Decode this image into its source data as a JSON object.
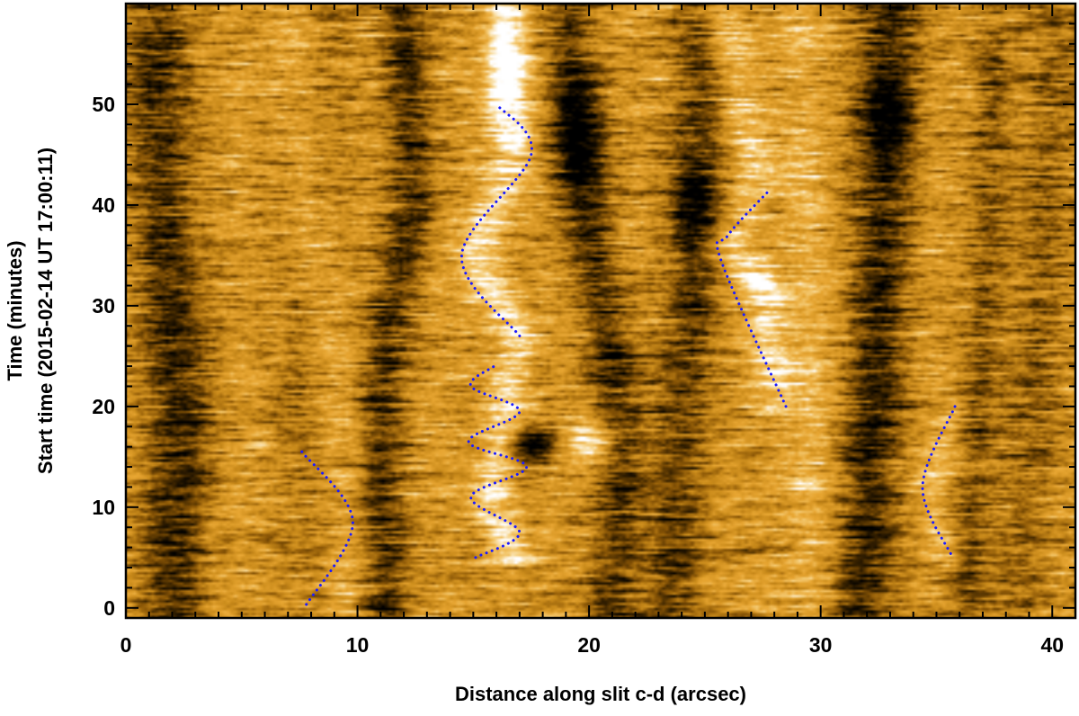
{
  "chart_data": {
    "type": "heatmap",
    "title": "",
    "xlabel": "Distance along slit c-d (arcsec)",
    "ylabel_line1": "Time (minutes)",
    "ylabel_line2": "Start time (2015-02-14 UT 17:00:11)",
    "xlim": [
      0,
      41
    ],
    "ylim": [
      -1,
      60
    ],
    "x_ticks": [
      0,
      10,
      20,
      30,
      40
    ],
    "y_ticks": [
      0,
      10,
      20,
      30,
      40,
      50
    ],
    "colormap": [
      "#000000",
      "#3a2300",
      "#8a5606",
      "#c98a1a",
      "#e8a632",
      "#f6cf7c",
      "#ffffff"
    ],
    "marker_color": "#1c1cff",
    "grid": false,
    "dark_bands": [
      {
        "x": [
          [
            0,
            2.0
          ],
          [
            10,
            2.2
          ],
          [
            20,
            2.4
          ],
          [
            30,
            2.0
          ],
          [
            40,
            1.6
          ],
          [
            50,
            1.4
          ],
          [
            60,
            1.3
          ]
        ],
        "width": 1.4,
        "strength": 0.75
      },
      {
        "x": [
          [
            0,
            11.3
          ],
          [
            10,
            11.1
          ],
          [
            20,
            11.0
          ],
          [
            30,
            11.5
          ],
          [
            40,
            12.4
          ],
          [
            50,
            12.2
          ],
          [
            60,
            12.0
          ]
        ],
        "width": 1.0,
        "strength": 0.7
      },
      {
        "x": [
          [
            0,
            8.0
          ],
          [
            20,
            7.5
          ],
          [
            40,
            8.2
          ],
          [
            60,
            8.4
          ]
        ],
        "width": 1.3,
        "strength": 0.2
      },
      {
        "x": [
          [
            0,
            21.0
          ],
          [
            10,
            21.3
          ],
          [
            20,
            21.3
          ],
          [
            30,
            20.6
          ],
          [
            40,
            19.8
          ],
          [
            50,
            19.3
          ],
          [
            60,
            19.1
          ]
        ],
        "width": 1.1,
        "strength": 0.7
      },
      {
        "x": [
          [
            0,
            23.5
          ],
          [
            15,
            23.9
          ],
          [
            30,
            24.4
          ],
          [
            45,
            24.7
          ],
          [
            60,
            24.9
          ]
        ],
        "width": 1.2,
        "strength": 0.65
      },
      {
        "x": [
          [
            0,
            31.8
          ],
          [
            20,
            32.3
          ],
          [
            40,
            32.7
          ],
          [
            60,
            32.9
          ]
        ],
        "width": 1.3,
        "strength": 0.8
      },
      {
        "x": [
          [
            0,
            36.3
          ],
          [
            20,
            36.8
          ],
          [
            40,
            37.3
          ],
          [
            60,
            37.6
          ]
        ],
        "width": 0.8,
        "strength": 0.45
      },
      {
        "x": [
          [
            0,
            38.5
          ],
          [
            30,
            39.5
          ],
          [
            60,
            40.4
          ]
        ],
        "width": 1.3,
        "strength": 0.35
      }
    ],
    "bright_bands": [
      {
        "x": [
          [
            0,
            9.2
          ],
          [
            10,
            9.6
          ],
          [
            20,
            9.0
          ],
          [
            30,
            8.5
          ],
          [
            40,
            8.0
          ],
          [
            50,
            7.6
          ],
          [
            60,
            7.4
          ]
        ],
        "width": 0.9,
        "strength": 0.3
      },
      {
        "x": [
          [
            5,
            16.8
          ],
          [
            10,
            15.8
          ],
          [
            20,
            16.3
          ],
          [
            27,
            17.0
          ],
          [
            35,
            15.0
          ],
          [
            45,
            16.8
          ],
          [
            60,
            16.5
          ]
        ],
        "width": 0.9,
        "strength": 0.7
      },
      {
        "x": [
          [
            20,
            28.0
          ],
          [
            30,
            27.9
          ],
          [
            36,
            26.0
          ],
          [
            42,
            27.4
          ],
          [
            60,
            25.5
          ]
        ],
        "width": 1.0,
        "strength": 0.55
      },
      {
        "x": [
          [
            0,
            29.5
          ],
          [
            30,
            29.6
          ],
          [
            60,
            29.0
          ]
        ],
        "width": 0.9,
        "strength": 0.3
      },
      {
        "x": [
          [
            5,
            35.5
          ],
          [
            12,
            34.6
          ],
          [
            20,
            35.8
          ]
        ],
        "width": 0.7,
        "strength": 0.35
      }
    ],
    "dark_blobs": [
      {
        "x": 17.6,
        "y": 16.0,
        "rx": 1.0,
        "ry": 1.8,
        "strength": 1.1
      },
      {
        "x": 19.6,
        "y": 47.5,
        "rx": 1.1,
        "ry": 6.0,
        "strength": 0.65
      },
      {
        "x": 24.5,
        "y": 40.0,
        "rx": 0.9,
        "ry": 4.0,
        "strength": 0.5
      },
      {
        "x": 33.0,
        "y": 49.0,
        "rx": 1.0,
        "ry": 4.0,
        "strength": 0.5
      }
    ],
    "bright_blobs": [
      {
        "x": 20.1,
        "y": 16.5,
        "rx": 1.0,
        "ry": 2.0,
        "strength": 0.9
      },
      {
        "x": 16.3,
        "y": 53.0,
        "rx": 0.8,
        "ry": 6.0,
        "strength": 0.7
      },
      {
        "x": 27.3,
        "y": 32.0,
        "rx": 1.0,
        "ry": 2.5,
        "strength": 0.4
      }
    ],
    "traced_oscillations": [
      {
        "name": "",
        "points": [
          [
            7.6,
            15.5
          ],
          [
            9.8,
            8.5
          ],
          [
            7.7,
            0
          ]
        ]
      },
      {
        "name": "",
        "points": [
          [
            17.0,
            27
          ],
          [
            14.5,
            35
          ],
          [
            17.5,
            45
          ],
          [
            16.0,
            50
          ]
        ]
      },
      {
        "name": "",
        "points": [
          [
            28.5,
            20
          ],
          [
            25.7,
            34.5
          ],
          [
            26.0,
            37
          ],
          [
            27.8,
            41.5
          ]
        ]
      },
      {
        "name": "",
        "points": [
          [
            15.1,
            5.0
          ],
          [
            17.0,
            7.5
          ],
          [
            14.9,
            11
          ],
          [
            17.3,
            14
          ],
          [
            14.8,
            16.5
          ],
          [
            17.0,
            19.5
          ],
          [
            14.9,
            22
          ],
          [
            15.9,
            24
          ]
        ]
      },
      {
        "name": "",
        "points": [
          [
            35.8,
            20
          ],
          [
            34.4,
            12
          ],
          [
            35.7,
            5.0
          ]
        ]
      }
    ]
  }
}
